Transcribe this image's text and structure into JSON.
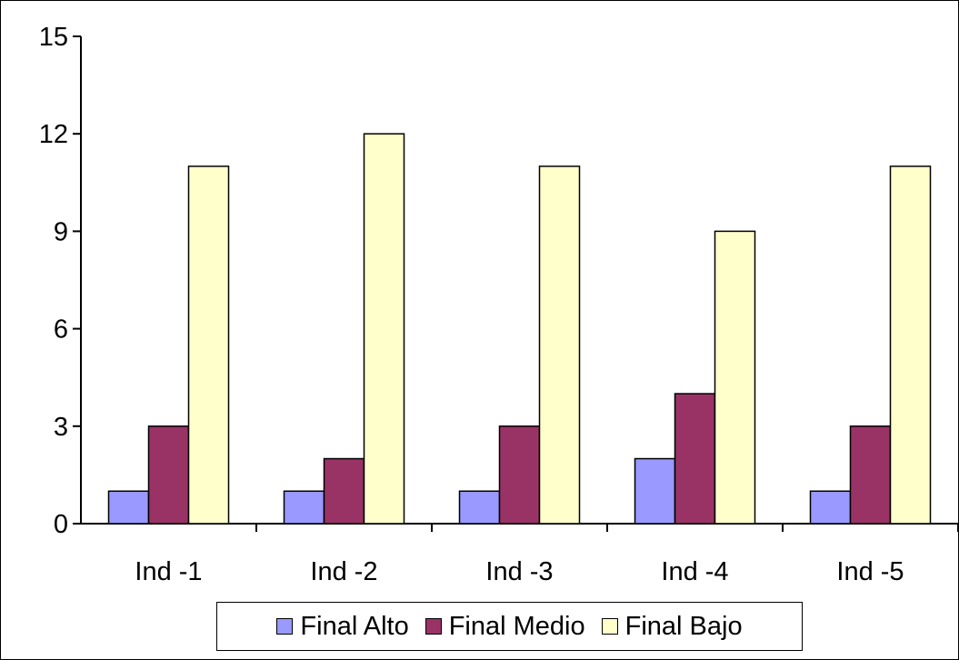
{
  "chart_data": {
    "type": "bar",
    "title": "",
    "xlabel": "",
    "ylabel": "",
    "categories": [
      "Ind -1",
      "Ind -2",
      "Ind -3",
      "Ind -4",
      "Ind -5"
    ],
    "series": [
      {
        "name": "Final Alto",
        "color": "#9999ff",
        "values": [
          1,
          1,
          1,
          2,
          1
        ]
      },
      {
        "name": "Final Medio",
        "color": "#993366",
        "values": [
          3,
          2,
          3,
          4,
          3
        ]
      },
      {
        "name": "Final Bajo",
        "color": "#ffffcc",
        "values": [
          11,
          12,
          11,
          9,
          11
        ]
      }
    ],
    "ylim": [
      0,
      15
    ],
    "yticks": [
      "0",
      "3",
      "6",
      "9",
      "12",
      "15"
    ],
    "grid": false,
    "legend_position": "bottom"
  }
}
